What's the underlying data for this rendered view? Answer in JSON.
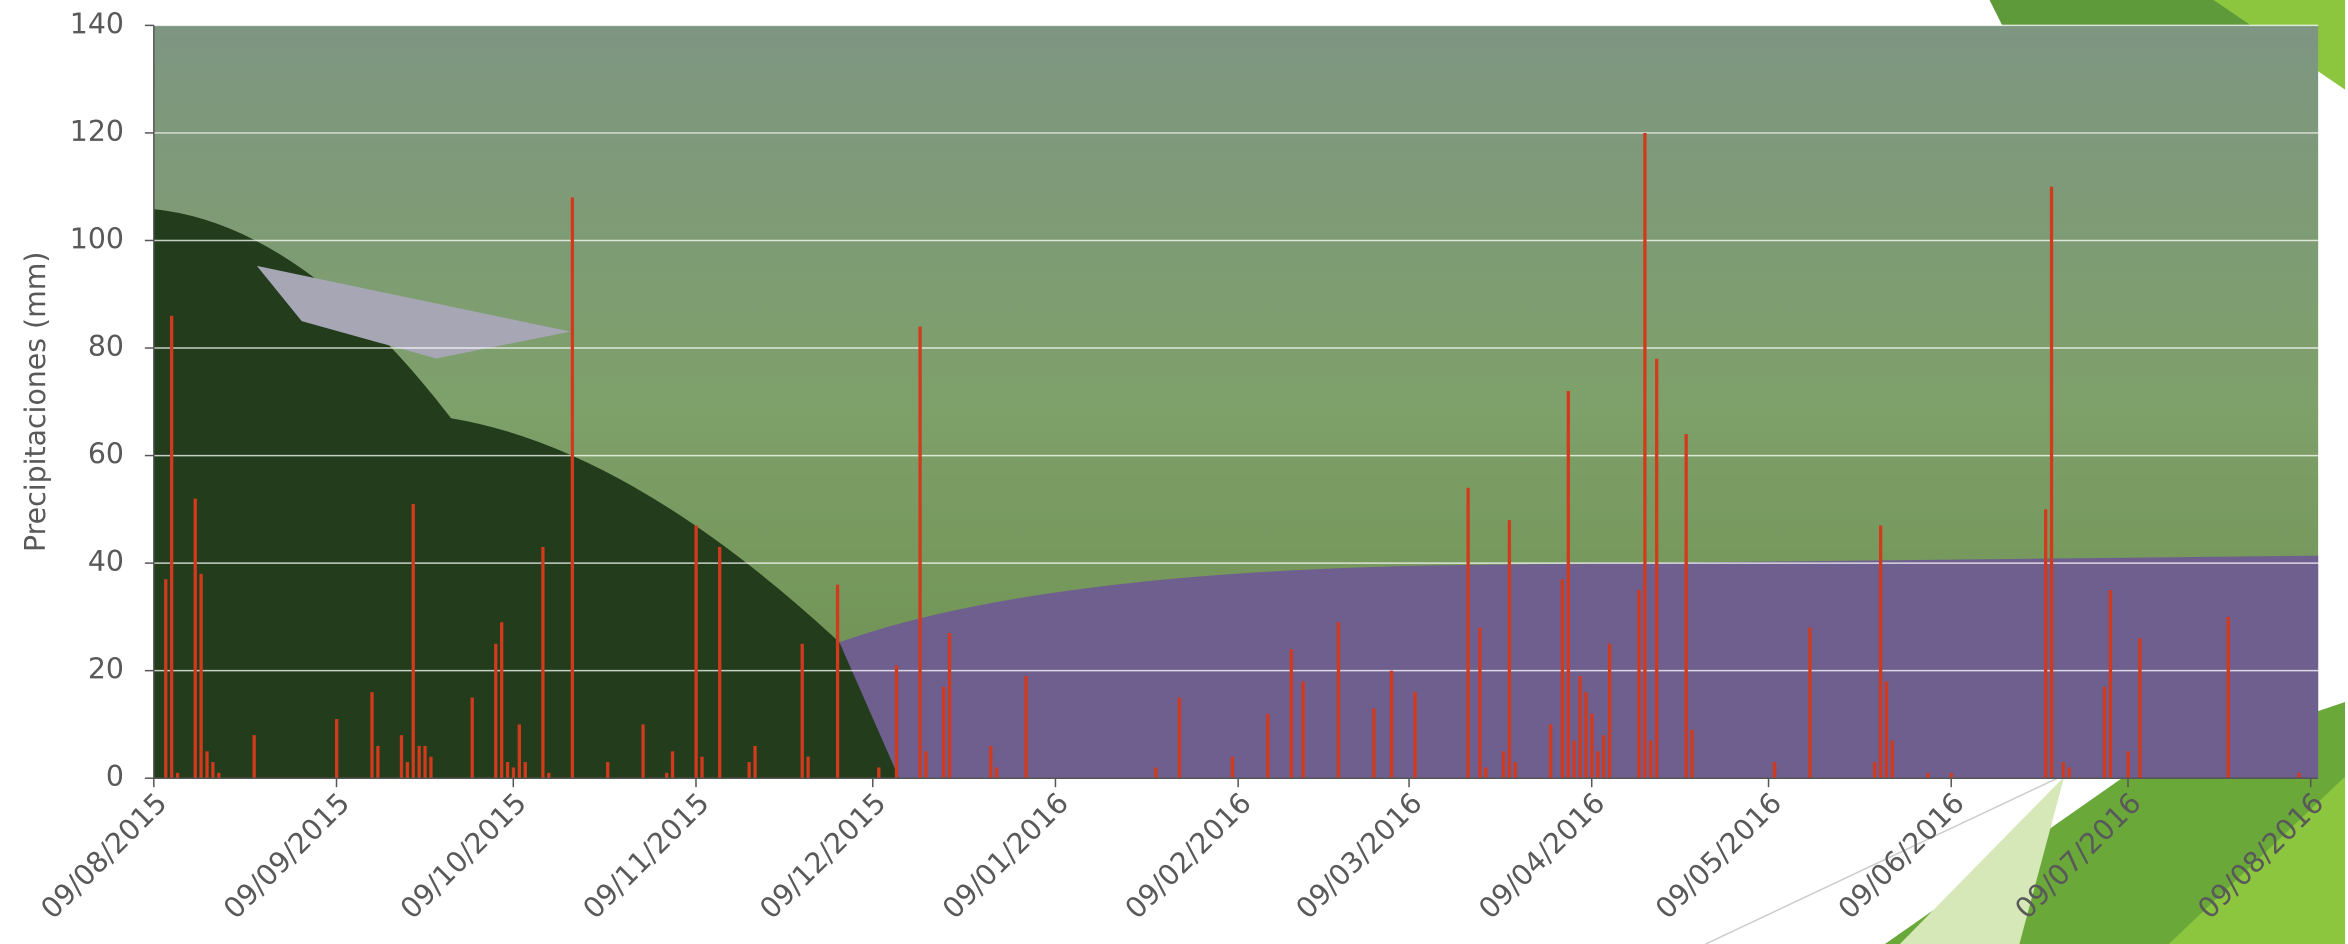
{
  "chart_data": {
    "type": "bar",
    "y_label": "Precipitaciones (mm)",
    "color": "#d23a1e",
    "grid": true,
    "ylim": [
      0,
      140
    ],
    "yticks": [
      0,
      20,
      40,
      60,
      80,
      100,
      120,
      140
    ],
    "xlim": [
      "09/08/2015",
      "09/08/2016"
    ],
    "xticks": [
      "09/08/2015",
      "09/09/2015",
      "09/10/2015",
      "09/11/2015",
      "09/12/2015",
      "09/01/2016",
      "09/02/2016",
      "09/03/2016",
      "09/04/2016",
      "09/05/2016",
      "09/06/2016",
      "09/07/2016",
      "09/08/2016"
    ],
    "x": [
      "11/08/2015",
      "12/08/2015",
      "13/08/2015",
      "16/08/2015",
      "17/08/2015",
      "18/08/2015",
      "19/08/2015",
      "20/08/2015",
      "26/08/2015",
      "09/09/2015",
      "15/09/2015",
      "16/09/2015",
      "20/09/2015",
      "21/09/2015",
      "22/09/2015",
      "23/09/2015",
      "24/09/2015",
      "25/09/2015",
      "02/10/2015",
      "06/10/2015",
      "07/10/2015",
      "08/10/2015",
      "09/10/2015",
      "10/10/2015",
      "11/10/2015",
      "14/10/2015",
      "15/10/2015",
      "19/10/2015",
      "25/10/2015",
      "31/10/2015",
      "04/11/2015",
      "05/11/2015",
      "09/11/2015",
      "10/11/2015",
      "13/11/2015",
      "18/11/2015",
      "19/11/2015",
      "27/11/2015",
      "28/11/2015",
      "03/12/2015",
      "10/12/2015",
      "13/12/2015",
      "17/12/2015",
      "18/12/2015",
      "21/12/2015",
      "22/12/2015",
      "29/12/2015",
      "30/12/2015",
      "04/01/2016",
      "26/01/2016",
      "30/01/2016",
      "08/02/2016",
      "14/02/2016",
      "18/02/2016",
      "20/02/2016",
      "26/02/2016",
      "03/03/2016",
      "06/03/2016",
      "10/03/2016",
      "19/03/2016",
      "21/03/2016",
      "22/03/2016",
      "25/03/2016",
      "26/03/2016",
      "27/03/2016",
      "02/04/2016",
      "04/04/2016",
      "05/04/2016",
      "06/04/2016",
      "07/04/2016",
      "08/04/2016",
      "09/04/2016",
      "10/04/2016",
      "11/04/2016",
      "12/04/2016",
      "17/04/2016",
      "18/04/2016",
      "19/04/2016",
      "20/04/2016",
      "25/04/2016",
      "26/04/2016",
      "10/05/2016",
      "16/05/2016",
      "27/05/2016",
      "28/05/2016",
      "29/05/2016",
      "30/05/2016",
      "05/06/2016",
      "09/06/2016",
      "25/06/2016",
      "26/06/2016",
      "28/06/2016",
      "29/06/2016",
      "05/07/2016",
      "06/07/2016",
      "09/07/2016",
      "11/07/2016",
      "26/07/2016",
      "07/08/2016"
    ],
    "values": [
      37,
      86,
      1,
      52,
      38,
      5,
      3,
      1,
      8,
      11,
      16,
      6,
      8,
      3,
      51,
      6,
      6,
      4,
      15,
      25,
      29,
      3,
      2,
      10,
      3,
      43,
      1,
      108,
      3,
      10,
      1,
      5,
      47,
      4,
      43,
      3,
      6,
      25,
      4,
      36,
      2,
      21,
      84,
      5,
      17,
      27,
      6,
      2,
      19,
      2,
      15,
      4,
      12,
      24,
      18,
      29,
      13,
      20,
      16,
      54,
      28,
      2,
      5,
      48,
      3,
      10,
      37,
      72,
      7,
      19,
      16,
      12,
      5,
      8,
      25,
      35,
      120,
      7,
      78,
      64,
      9,
      3,
      28,
      3,
      47,
      18,
      7,
      1,
      1,
      50,
      110,
      3,
      2,
      17,
      35,
      5,
      26,
      30,
      1
    ]
  }
}
